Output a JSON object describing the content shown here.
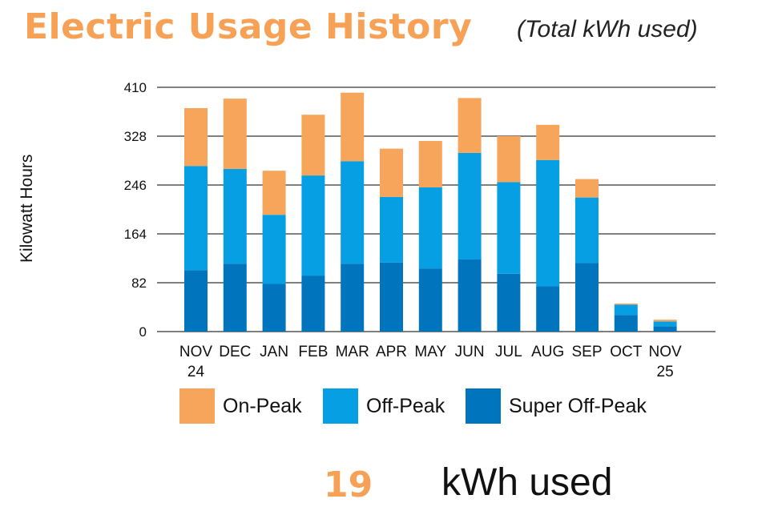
{
  "title": "Electric Usage History",
  "subtitle": "(Total kWh used)",
  "colors": {
    "title": "#f7a156",
    "on_peak": "#f7a55b",
    "off_peak": "#069fe3",
    "super_off_peak": "#0075bd",
    "grid": "#333333",
    "text": "#111111"
  },
  "chart_data": {
    "type": "bar",
    "stacked": true,
    "categories": [
      [
        "NOV",
        "24"
      ],
      [
        "DEC"
      ],
      [
        "JAN"
      ],
      [
        "FEB"
      ],
      [
        "MAR"
      ],
      [
        "APR"
      ],
      [
        "MAY"
      ],
      [
        "JUN"
      ],
      [
        "JUL"
      ],
      [
        "AUG"
      ],
      [
        "SEP"
      ],
      [
        "OCT"
      ],
      [
        "NOV",
        "25"
      ]
    ],
    "series": [
      {
        "name": "Super Off-Peak",
        "color": "#0075bd",
        "values": [
          103,
          114,
          80,
          94,
          114,
          116,
          106,
          121,
          97,
          76,
          115,
          28,
          9
        ]
      },
      {
        "name": "Off-Peak",
        "color": "#069fe3",
        "values": [
          175,
          159,
          116,
          168,
          172,
          110,
          136,
          179,
          154,
          212,
          110,
          17,
          8
        ]
      },
      {
        "name": "On-Peak",
        "color": "#f7a55b",
        "values": [
          97,
          118,
          74,
          102,
          115,
          81,
          78,
          92,
          77,
          59,
          31,
          2,
          3
        ]
      }
    ],
    "ylabel": "Kilowatt Hours",
    "yticks": [
      0,
      82,
      164,
      246,
      328,
      410
    ],
    "ylim": [
      0,
      410
    ],
    "grid": true,
    "legend": [
      "On-Peak",
      "Off-Peak",
      "Super Off-Peak"
    ],
    "legend_position": "bottom"
  },
  "summary": {
    "value": "19",
    "unit": "kWh used"
  }
}
